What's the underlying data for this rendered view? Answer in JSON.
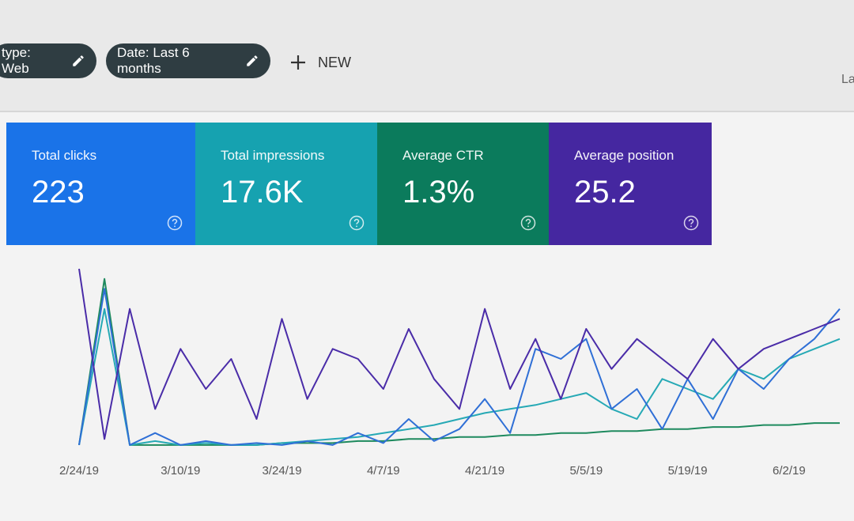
{
  "toolbar": {
    "chips": [
      "type: Web",
      "Date: Last 6 months"
    ],
    "new": "NEW",
    "right": "La"
  },
  "cards": [
    {
      "label": "Total clicks",
      "value": "223",
      "color": "#1a73e8"
    },
    {
      "label": "Total impressions",
      "value": "17.6K",
      "color": "#16a2b0"
    },
    {
      "label": "Average CTR",
      "value": "1.3%",
      "color": "#0b7b5c"
    },
    {
      "label": "Average position",
      "value": "25.2",
      "color": "#4527a0"
    }
  ],
  "chart_data": {
    "type": "line",
    "categories": [
      "2/24/19",
      null,
      null,
      null,
      "3/10/19",
      null,
      null,
      null,
      "3/24/19",
      null,
      null,
      null,
      "4/7/19",
      null,
      null,
      null,
      "4/21/19",
      null,
      null,
      null,
      "5/5/19",
      null,
      null,
      null,
      "5/19/19",
      null,
      null,
      null,
      "6/2/19",
      null,
      null
    ],
    "series": [
      {
        "color": "#4a2ca8",
        "values": [
          90,
          5,
          70,
          20,
          50,
          30,
          45,
          15,
          65,
          25,
          50,
          45,
          30,
          60,
          35,
          20,
          70,
          30,
          55,
          25,
          60,
          40,
          55,
          45,
          35,
          55,
          40,
          50,
          55,
          60,
          65
        ]
      },
      {
        "color": "#2f6fd6",
        "values": [
          2,
          80,
          2,
          8,
          2,
          4,
          2,
          3,
          2,
          4,
          2,
          8,
          3,
          15,
          4,
          10,
          25,
          8,
          50,
          45,
          55,
          20,
          30,
          10,
          35,
          15,
          40,
          30,
          45,
          55,
          70
        ]
      },
      {
        "color": "#26a9b5",
        "values": [
          2,
          70,
          2,
          4,
          2,
          3,
          2,
          2,
          3,
          4,
          5,
          6,
          8,
          10,
          12,
          15,
          18,
          20,
          22,
          25,
          28,
          20,
          15,
          35,
          30,
          25,
          40,
          35,
          45,
          50,
          55
        ]
      },
      {
        "color": "#1e8a5e",
        "values": [
          2,
          85,
          2,
          2,
          2,
          2,
          2,
          2,
          3,
          3,
          3,
          4,
          4,
          5,
          5,
          6,
          6,
          7,
          7,
          8,
          8,
          9,
          9,
          10,
          10,
          11,
          11,
          12,
          12,
          13,
          13
        ]
      }
    ]
  }
}
